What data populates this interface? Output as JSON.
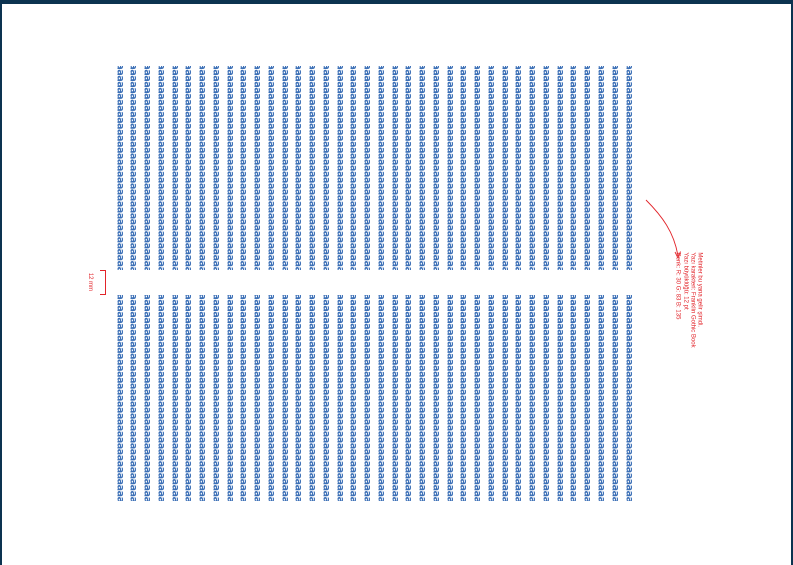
{
  "specimen": {
    "column_text": "aaaaaaaaaaaaaaaaaaaaaaaaaaaaaaaaaaaaaaaaaaaaaaaaaaa",
    "column_count": 38,
    "colors": {
      "text": "#3b6fb6",
      "annotation": "#e2242a",
      "frame": "#0c3350"
    }
  },
  "gap": {
    "label": "12 mm"
  },
  "note": {
    "lines": [
      "Metinler bu yana gelir şimdi.",
      "Yazı karakteri: Franklin Gothic Book",
      "Yazı büyüklüğü: 12 pt",
      "Renk: R: 30 G: 83 B: 135"
    ]
  }
}
